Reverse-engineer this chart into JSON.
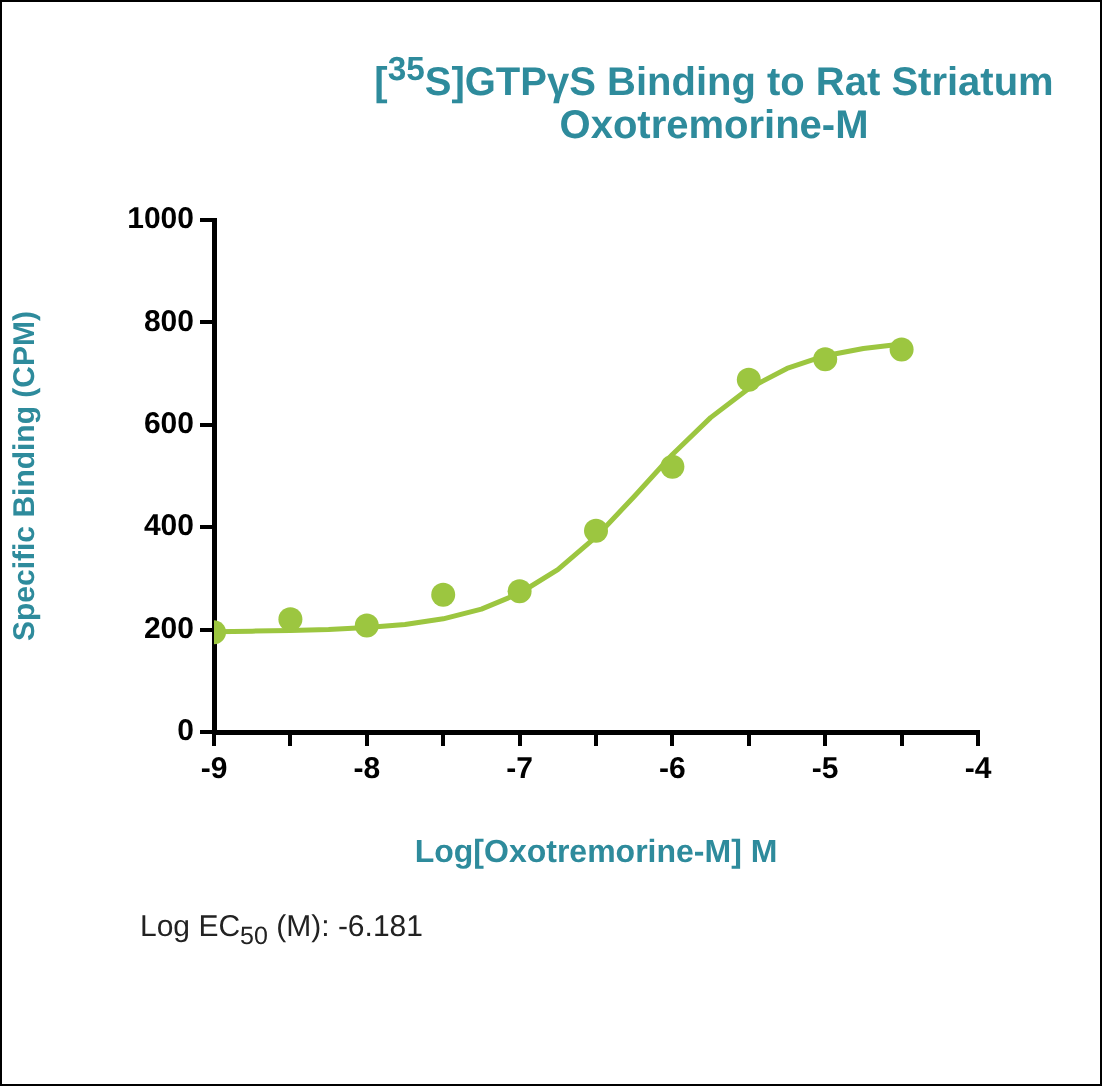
{
  "chart_data": {
    "type": "scatter",
    "title": "[$^{35}$S]GTPγS Binding to Rat Striatum",
    "subtitle": "Oxotremorine-M",
    "xlabel": "Log[Oxotremorine-M] M",
    "ylabel": "Specific Binding (CPM)",
    "x": [
      -9,
      -8.5,
      -8,
      -7.5,
      -7,
      -6.5,
      -6,
      -5.5,
      -5,
      -4.5
    ],
    "series": [
      {
        "type": "scatter",
        "color": "#9cc640",
        "marker": "circle",
        "values": [
          195,
          220,
          208,
          268,
          275,
          393,
          518,
          688,
          728,
          747
        ]
      },
      {
        "type": "line",
        "color": "#9cc640",
        "marker": "none",
        "line_style": "solid",
        "x": [
          -9,
          -8.75,
          -8.5,
          -8.25,
          -8,
          -7.75,
          -7.5,
          -7.25,
          -7,
          -6.75,
          -6.5,
          -6.25,
          -6,
          -5.75,
          -5.5,
          -5.25,
          -5,
          -4.75,
          -4.5
        ],
        "values": [
          196,
          197,
          198,
          200,
          204,
          210,
          221,
          240,
          271,
          317,
          381,
          460,
          542,
          614,
          671,
          710,
          735,
          749,
          758
        ]
      }
    ],
    "xlim": [
      -9,
      -4
    ],
    "xticks": [
      -9,
      {
        "value": -8.5,
        "label": null
      },
      -8,
      {
        "value": -7.5,
        "label": null
      },
      -7,
      {
        "value": -6.5,
        "label": null
      },
      -6,
      {
        "value": -5.5,
        "label": null
      },
      -5,
      {
        "value": -4.5,
        "label": null
      },
      -4
    ],
    "ylim": [
      0,
      1000
    ],
    "yticks": [
      0,
      200,
      400,
      600,
      800,
      1000
    ],
    "grid": false,
    "legend": false,
    "annotations": [
      "Log EC$_{50}$ (M): -6.181"
    ]
  }
}
